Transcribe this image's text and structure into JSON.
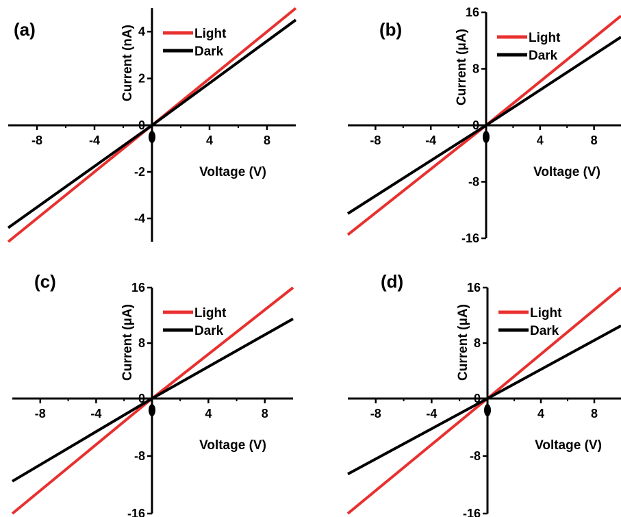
{
  "colors": {
    "light": "#e8312f",
    "dark": "#000000",
    "axis": "#000000"
  },
  "chart_data": [
    {
      "type": "line",
      "panel_label": "(a)",
      "xlabel": "Voltage (V)",
      "ylabel": "Current (nA)",
      "xlim": [
        -10,
        10
      ],
      "ylim": [
        -5,
        5
      ],
      "x_ticks": [
        -8,
        -4,
        4,
        8
      ],
      "y_ticks": [
        -4,
        -2,
        2,
        4
      ],
      "origin_label": "0",
      "legend": "top-right",
      "series": [
        {
          "name": "Light",
          "color": "#e8312f",
          "x": [
            -10,
            0,
            10
          ],
          "y": [
            -5.0,
            0,
            5.0
          ]
        },
        {
          "name": "Dark",
          "color": "#000000",
          "x": [
            -10,
            0,
            10
          ],
          "y": [
            -4.4,
            0,
            4.5
          ]
        }
      ]
    },
    {
      "type": "line",
      "panel_label": "(b)",
      "xlabel": "Voltage (V)",
      "ylabel": "Current (μA)",
      "xlim": [
        -10,
        10
      ],
      "ylim": [
        -16,
        16
      ],
      "x_ticks": [
        -8,
        -4,
        4,
        8
      ],
      "y_ticks": [
        -16,
        -8,
        8,
        16
      ],
      "origin_label": "0",
      "legend": "top-right",
      "series": [
        {
          "name": "Light",
          "color": "#e8312f",
          "x": [
            -10,
            0,
            10
          ],
          "y": [
            -15.5,
            0,
            15.5
          ]
        },
        {
          "name": "Dark",
          "color": "#000000",
          "x": [
            -10,
            0,
            10
          ],
          "y": [
            -12.5,
            0,
            12.5
          ]
        }
      ]
    },
    {
      "type": "line",
      "panel_label": "(c)",
      "xlabel": "Voltage (V)",
      "ylabel": "Current (μA)",
      "xlim": [
        -10,
        10
      ],
      "ylim": [
        -16,
        16
      ],
      "x_ticks": [
        -8,
        -4,
        4,
        8
      ],
      "y_ticks": [
        -16,
        -8,
        8,
        16
      ],
      "origin_label": "0",
      "legend": "top-right",
      "series": [
        {
          "name": "Light",
          "color": "#e8312f",
          "x": [
            -10,
            0,
            10
          ],
          "y": [
            -16.0,
            0,
            16.0
          ]
        },
        {
          "name": "Dark",
          "color": "#000000",
          "x": [
            -10,
            0,
            10
          ],
          "y": [
            -11.5,
            0,
            11.5
          ]
        }
      ]
    },
    {
      "type": "line",
      "panel_label": "(d)",
      "xlabel": "Voltage (V)",
      "ylabel": "Current (μA)",
      "xlim": [
        -10,
        10
      ],
      "ylim": [
        -16,
        16
      ],
      "x_ticks": [
        -8,
        -4,
        4,
        8
      ],
      "y_ticks": [
        -16,
        -8,
        8,
        16
      ],
      "origin_label": "0",
      "legend": "top-right",
      "series": [
        {
          "name": "Light",
          "color": "#e8312f",
          "x": [
            -10,
            0,
            10
          ],
          "y": [
            -16.0,
            0,
            16.0
          ]
        },
        {
          "name": "Dark",
          "color": "#000000",
          "x": [
            -10,
            0,
            10
          ],
          "y": [
            -10.5,
            0,
            10.5
          ]
        }
      ]
    }
  ]
}
